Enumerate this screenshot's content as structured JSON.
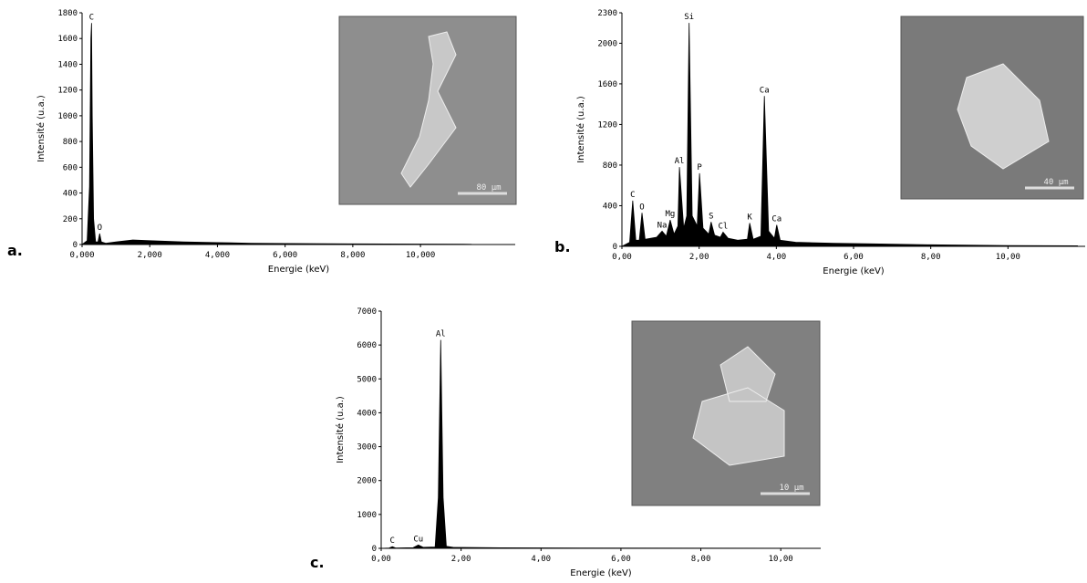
{
  "chart_data": [
    {
      "type": "area",
      "panel_label": "a.",
      "x_label": "Energie (keV)",
      "y_label": "Intensité (u.a.)",
      "color": "#000000",
      "scale_bar": "80 µm",
      "x": [
        0,
        0.15,
        0.22,
        0.26,
        0.28,
        0.3,
        0.34,
        0.4,
        0.47,
        0.52,
        0.57,
        0.7,
        1.0,
        1.5,
        2.0,
        3.0,
        4.0,
        5.0,
        6.0,
        8.0,
        10.0,
        11.5
      ],
      "values": [
        0,
        30,
        450,
        1600,
        1720,
        1000,
        200,
        20,
        20,
        85,
        20,
        10,
        20,
        35,
        30,
        20,
        15,
        10,
        8,
        5,
        3,
        2
      ],
      "peaks": [
        {
          "label": "C",
          "x": 0.28,
          "y": 1720
        },
        {
          "label": "O",
          "x": 0.52,
          "y": 85
        }
      ],
      "xlim": [
        0,
        12.8
      ],
      "ylim": [
        0,
        1800
      ],
      "xticks": [
        {
          "value": 0,
          "label": "0,000"
        },
        {
          "value": 2,
          "label": "2,000"
        },
        {
          "value": 4,
          "label": "4,000"
        },
        {
          "value": 6,
          "label": "6,000"
        },
        {
          "value": 8,
          "label": "8,000"
        },
        {
          "value": 10,
          "label": "10,000"
        }
      ],
      "yticks": [
        0,
        200,
        400,
        600,
        800,
        1000,
        1200,
        1400,
        1600,
        1800
      ]
    },
    {
      "type": "area",
      "panel_label": "b.",
      "x_label": "Energie (keV)",
      "y_label": "Intensité (u.a.)",
      "color": "#000000",
      "scale_bar": "40 µm",
      "x": [
        0,
        0.2,
        0.28,
        0.36,
        0.45,
        0.52,
        0.6,
        0.9,
        1.04,
        1.15,
        1.25,
        1.35,
        1.45,
        1.49,
        1.6,
        1.68,
        1.74,
        1.82,
        1.95,
        2.01,
        2.1,
        2.25,
        2.31,
        2.4,
        2.55,
        2.62,
        2.75,
        3.0,
        3.25,
        3.31,
        3.4,
        3.6,
        3.69,
        3.8,
        3.95,
        4.01,
        4.1,
        4.5,
        5.5,
        6.5,
        8.0,
        10.0,
        11.8
      ],
      "values": [
        0,
        40,
        450,
        60,
        60,
        330,
        70,
        90,
        150,
        100,
        260,
        120,
        200,
        780,
        180,
        300,
        2200,
        300,
        200,
        720,
        180,
        120,
        240,
        110,
        90,
        140,
        80,
        60,
        70,
        230,
        70,
        100,
        1480,
        150,
        80,
        210,
        60,
        40,
        30,
        25,
        15,
        8,
        5
      ],
      "peaks": [
        {
          "label": "C",
          "x": 0.28,
          "y": 450
        },
        {
          "label": "O",
          "x": 0.52,
          "y": 330
        },
        {
          "label": "Na",
          "x": 1.04,
          "y": 150
        },
        {
          "label": "Mg",
          "x": 1.25,
          "y": 260
        },
        {
          "label": "Al",
          "x": 1.49,
          "y": 780
        },
        {
          "label": "Si",
          "x": 1.74,
          "y": 2200
        },
        {
          "label": "P",
          "x": 2.01,
          "y": 720
        },
        {
          "label": "S",
          "x": 2.31,
          "y": 240
        },
        {
          "label": "Cl",
          "x": 2.62,
          "y": 140
        },
        {
          "label": "K",
          "x": 3.31,
          "y": 230
        },
        {
          "label": "Ca",
          "x": 3.69,
          "y": 1480
        },
        {
          "label": "Ca",
          "x": 4.01,
          "y": 210
        }
      ],
      "xlim": [
        0,
        12
      ],
      "ylim": [
        0,
        2300
      ],
      "xticks": [
        {
          "value": 0,
          "label": "0,00"
        },
        {
          "value": 2,
          "label": "2,00"
        },
        {
          "value": 4,
          "label": "4,00"
        },
        {
          "value": 6,
          "label": "6,00"
        },
        {
          "value": 8,
          "label": "8,00"
        },
        {
          "value": 10,
          "label": "10,00"
        }
      ],
      "yticks": [
        0,
        400,
        800,
        1200,
        1600,
        2000,
        2300
      ]
    },
    {
      "type": "area",
      "panel_label": "c.",
      "x_label": "Energie (keV)",
      "y_label": "Intensité (u.a.)",
      "color": "#000000",
      "scale_bar": "10 µm",
      "x": [
        0,
        0.2,
        0.28,
        0.36,
        0.8,
        0.93,
        1.05,
        1.35,
        1.43,
        1.49,
        1.55,
        1.63,
        1.8,
        3.0,
        5.0,
        8.0,
        10.8
      ],
      "values": [
        0,
        10,
        50,
        10,
        20,
        100,
        30,
        40,
        1500,
        6150,
        1500,
        60,
        30,
        15,
        10,
        5,
        3
      ],
      "peaks": [
        {
          "label": "C",
          "x": 0.28,
          "y": 50
        },
        {
          "label": "Cu",
          "x": 0.93,
          "y": 100
        },
        {
          "label": "Al",
          "x": 1.49,
          "y": 6150
        }
      ],
      "xlim": [
        0,
        11
      ],
      "ylim": [
        0,
        7000
      ],
      "xticks": [
        {
          "value": 0,
          "label": "0,00"
        },
        {
          "value": 2,
          "label": "2,00"
        },
        {
          "value": 4,
          "label": "4,00"
        },
        {
          "value": 6,
          "label": "6,00"
        },
        {
          "value": 8,
          "label": "8,00"
        },
        {
          "value": 10,
          "label": "10,00"
        }
      ],
      "yticks": [
        0,
        1000,
        2000,
        3000,
        4000,
        5000,
        6000,
        7000
      ]
    }
  ]
}
